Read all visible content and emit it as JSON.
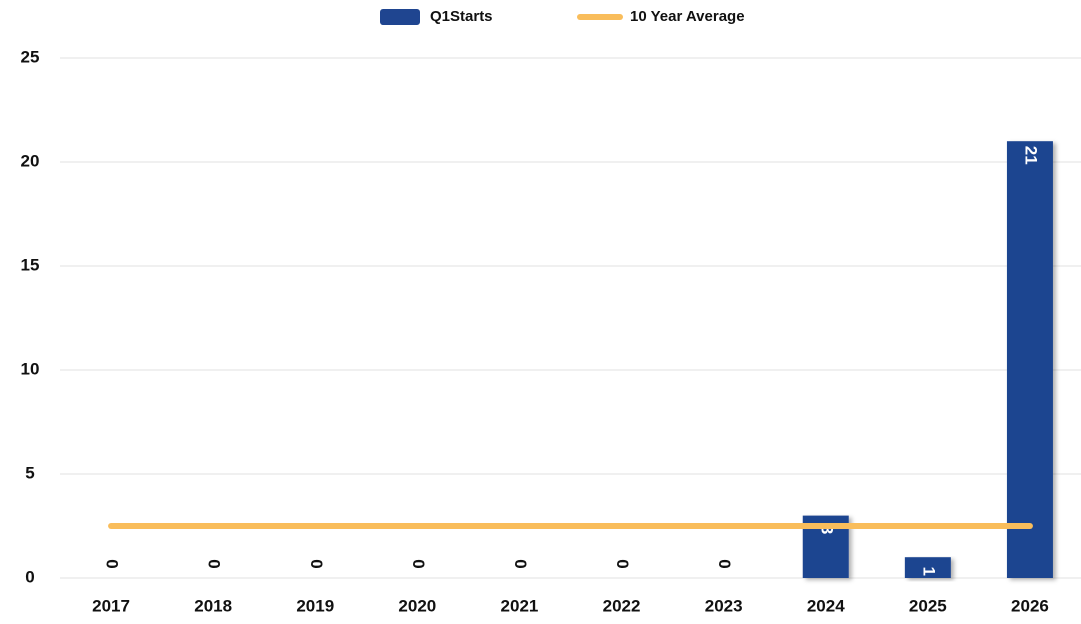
{
  "chart_data": {
    "type": "bar",
    "categories": [
      "2017",
      "2018",
      "2019",
      "2020",
      "2021",
      "2022",
      "2023",
      "2024",
      "2025",
      "2026"
    ],
    "series": [
      {
        "name": "Q1Starts",
        "type": "bar",
        "color": "#1f4590",
        "values": [
          0,
          0,
          0,
          0,
          0,
          0,
          0,
          3,
          1,
          21
        ]
      },
      {
        "name": "10 Year Average",
        "type": "line",
        "color": "#f9bd5b",
        "values": [
          2.5,
          2.5,
          2.5,
          2.5,
          2.5,
          2.5,
          2.5,
          2.5,
          2.5,
          2.5
        ]
      }
    ],
    "ylim": [
      0,
      25
    ],
    "yticks": [
      0,
      5,
      10,
      15,
      20,
      25
    ],
    "grid": true,
    "legend": "top"
  }
}
